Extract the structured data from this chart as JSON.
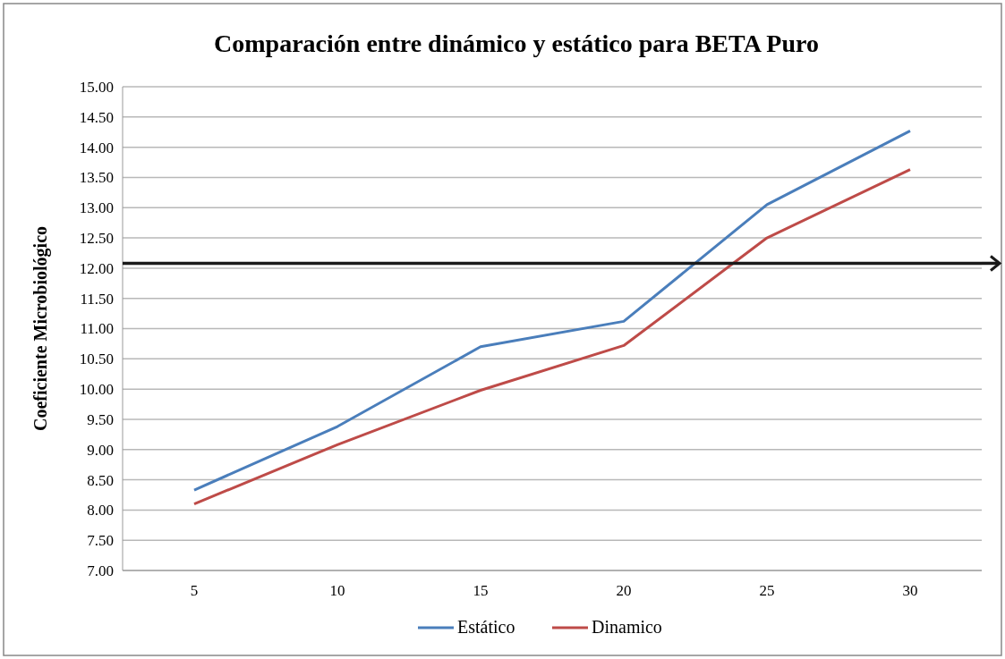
{
  "chart_data": {
    "type": "line",
    "title": "Comparación entre dinámico y estático para BETA Puro",
    "ylabel": "Coeficiente Microbiológico",
    "categories": [
      "5",
      "10",
      "15",
      "20",
      "25",
      "30"
    ],
    "series": [
      {
        "name": "Estático",
        "color": "#4a7ebb",
        "values": [
          8.33,
          9.38,
          10.7,
          11.12,
          13.05,
          14.27
        ]
      },
      {
        "name": "Dinamico",
        "color": "#be4b48",
        "values": [
          8.1,
          9.08,
          9.98,
          10.72,
          12.5,
          13.63
        ]
      }
    ],
    "ylim": [
      7,
      15
    ],
    "yticks": [
      {
        "value": 7,
        "label": "7.00"
      },
      {
        "value": 7.5,
        "label": "7.50"
      },
      {
        "value": 8,
        "label": "8.00"
      },
      {
        "value": 8.5,
        "label": "8.50"
      },
      {
        "value": 9,
        "label": "9.00"
      },
      {
        "value": 9.5,
        "label": "9.50"
      },
      {
        "value": 10,
        "label": "10.00"
      },
      {
        "value": 10.5,
        "label": "10.50"
      },
      {
        "value": 11,
        "label": "11.00"
      },
      {
        "value": 11.5,
        "label": "11.50"
      },
      {
        "value": 12,
        "label": "12.00"
      },
      {
        "value": 12.5,
        "label": "12.50"
      },
      {
        "value": 13,
        "label": "13.00"
      },
      {
        "value": 13.5,
        "label": "13.50"
      },
      {
        "value": 14,
        "label": "14.00"
      },
      {
        "value": 14.5,
        "label": "14.50"
      },
      {
        "value": 15,
        "label": "15.00"
      }
    ],
    "grid": "y",
    "legend": "bottom",
    "marker": "none",
    "line_style": "solid",
    "ref_lines": [
      {
        "axis": "y",
        "value": 12.08,
        "color": "#1a1a1a",
        "line_style": "solid"
      }
    ]
  }
}
